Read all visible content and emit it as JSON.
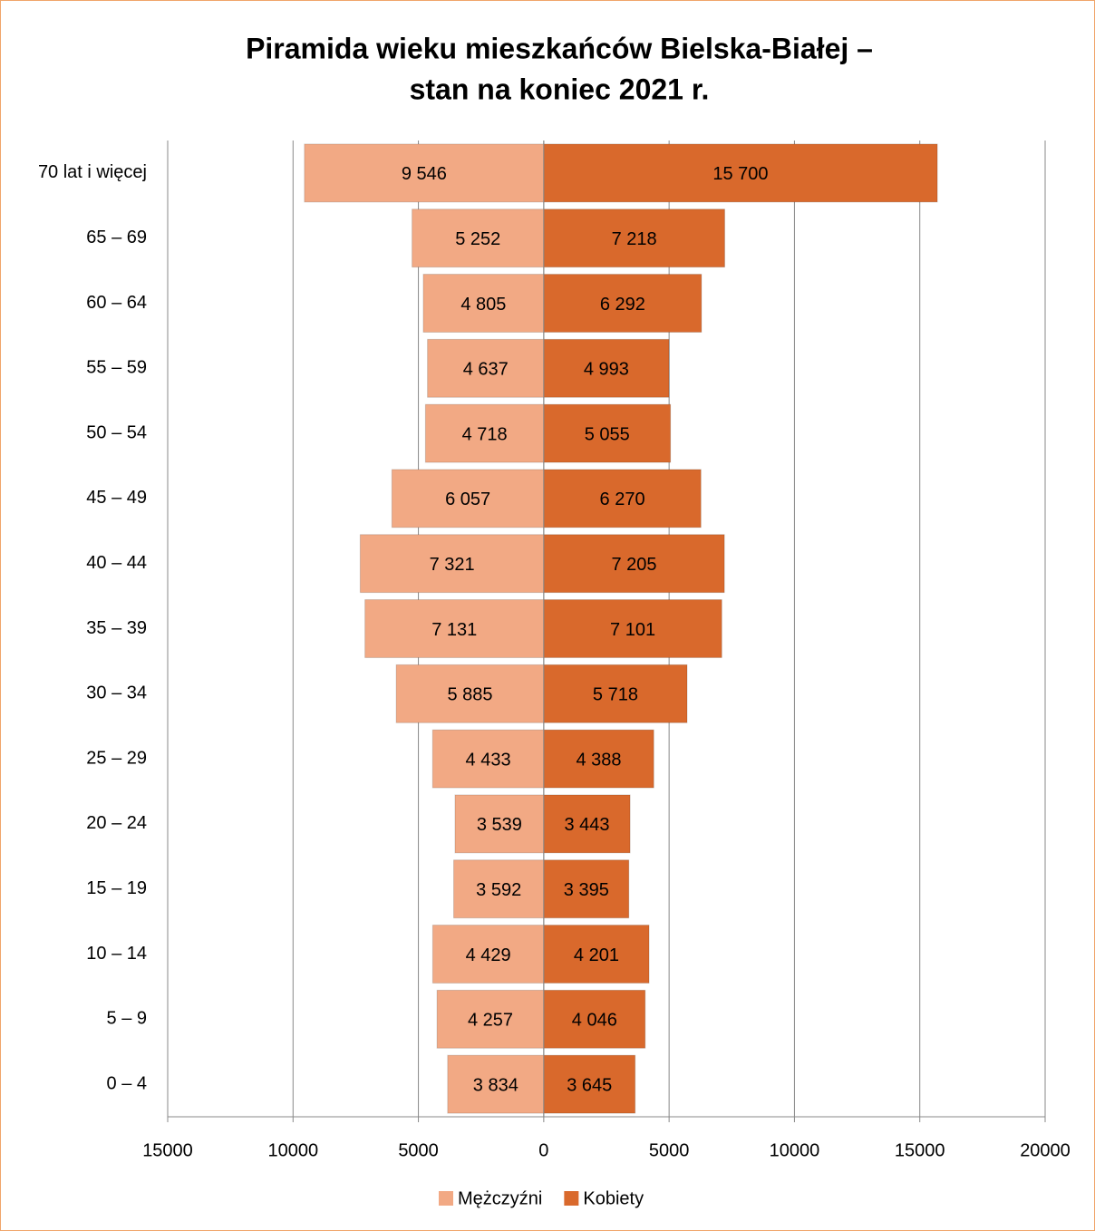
{
  "chart_data": {
    "type": "pyramid",
    "title": [
      "Piramida wieku mieszkańców Bielska-Białej –",
      "stan na koniec 2021 r."
    ],
    "categories": [
      "70 lat i więcej",
      "65 – 69",
      "60 – 64",
      "55 – 59",
      "50 – 54",
      "45 – 49",
      "40 – 44",
      "35 – 39",
      "30 – 34",
      "25 – 29",
      "20 – 24",
      "15 – 19",
      "10 – 14",
      "5 – 9",
      "0 – 4"
    ],
    "series": [
      {
        "name": "Mężczyźni",
        "color": "#f2a984",
        "values": [
          -9546,
          -5252,
          -4805,
          -4637,
          -4718,
          -6057,
          -7321,
          -7131,
          -5885,
          -4433,
          -3539,
          -3592,
          -4429,
          -4257,
          -3834
        ],
        "value_labels": [
          "9 546",
          "5 252",
          "4 805",
          "4 637",
          "4 718",
          "6 057",
          "7 321",
          "7 131",
          "5 885",
          "4 433",
          "3 539",
          "3 592",
          "4 429",
          "4 257",
          "3 834"
        ]
      },
      {
        "name": "Kobiety",
        "color": "#d9692c",
        "values": [
          15700,
          7218,
          6292,
          4993,
          5055,
          6270,
          7205,
          7101,
          5718,
          4388,
          3443,
          3395,
          4201,
          4046,
          3645
        ],
        "value_labels": [
          "15 700",
          "7 218",
          "6 292",
          "4 993",
          "5 055",
          "6 270",
          "7 205",
          "7 101",
          "5 718",
          "4 388",
          "3 443",
          "3 395",
          "4 201",
          "4 046",
          "3 645"
        ]
      }
    ],
    "xlim": [
      -15000,
      20000
    ],
    "xticks": [
      {
        "value": -15000,
        "label": "15000"
      },
      {
        "value": -10000,
        "label": "10000"
      },
      {
        "value": -5000,
        "label": "5000"
      },
      0,
      5000,
      10000,
      15000,
      20000
    ],
    "grid": true,
    "legend": "bottom"
  }
}
